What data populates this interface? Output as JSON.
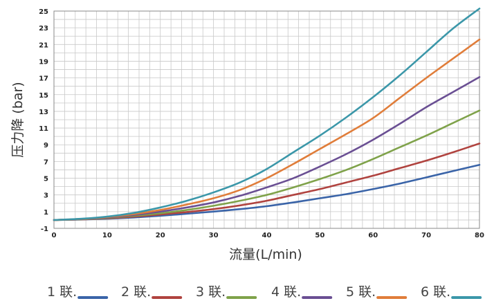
{
  "chart_data": {
    "type": "line",
    "title": "",
    "xlabel": "流量(L/min)",
    "ylabel": "压力降 (bar)",
    "xlim": [
      0,
      80
    ],
    "ylim": [
      -1,
      25
    ],
    "x_ticks": [
      0,
      10,
      20,
      30,
      40,
      50,
      60,
      70,
      80
    ],
    "y_ticks": [
      -1,
      1,
      3,
      5,
      7,
      9,
      11,
      13,
      15,
      17,
      19,
      21,
      23,
      25
    ],
    "grid": true,
    "legend_position": "bottom",
    "x": [
      0,
      5,
      10,
      15,
      20,
      25,
      30,
      35,
      40,
      45,
      50,
      55,
      60,
      65,
      70,
      75,
      80
    ],
    "series": [
      {
        "name": "1 联.",
        "color": "#3a64a8",
        "values": [
          0,
          0.05,
          0.15,
          0.3,
          0.5,
          0.75,
          1.0,
          1.3,
          1.65,
          2.1,
          2.6,
          3.1,
          3.7,
          4.35,
          5.1,
          5.85,
          6.6
        ]
      },
      {
        "name": "2 联.",
        "color": "#b0433f",
        "values": [
          0,
          0.07,
          0.2,
          0.4,
          0.65,
          0.95,
          1.3,
          1.75,
          2.3,
          3.0,
          3.7,
          4.5,
          5.3,
          6.2,
          7.1,
          8.1,
          9.15
        ]
      },
      {
        "name": "3 联.",
        "color": "#7fa24a",
        "values": [
          0,
          0.08,
          0.25,
          0.5,
          0.8,
          1.2,
          1.7,
          2.3,
          3.0,
          3.9,
          4.9,
          6.0,
          7.3,
          8.7,
          10.1,
          11.6,
          13.1
        ]
      },
      {
        "name": "4 联.",
        "color": "#6a4f93",
        "values": [
          0,
          0.1,
          0.3,
          0.6,
          1.0,
          1.5,
          2.1,
          2.9,
          3.9,
          5.0,
          6.4,
          7.9,
          9.6,
          11.5,
          13.5,
          15.3,
          17.1
        ]
      },
      {
        "name": "5 联.",
        "color": "#e07d3a",
        "values": [
          0,
          0.12,
          0.35,
          0.7,
          1.2,
          1.85,
          2.6,
          3.6,
          5.0,
          6.7,
          8.5,
          10.3,
          12.2,
          14.6,
          17.0,
          19.3,
          21.6
        ]
      },
      {
        "name": "6 联.",
        "color": "#3b97a9",
        "values": [
          0,
          0.14,
          0.4,
          0.85,
          1.5,
          2.3,
          3.3,
          4.5,
          6.1,
          8.1,
          10.1,
          12.3,
          14.7,
          17.3,
          20.1,
          22.9,
          25.3
        ]
      }
    ]
  }
}
